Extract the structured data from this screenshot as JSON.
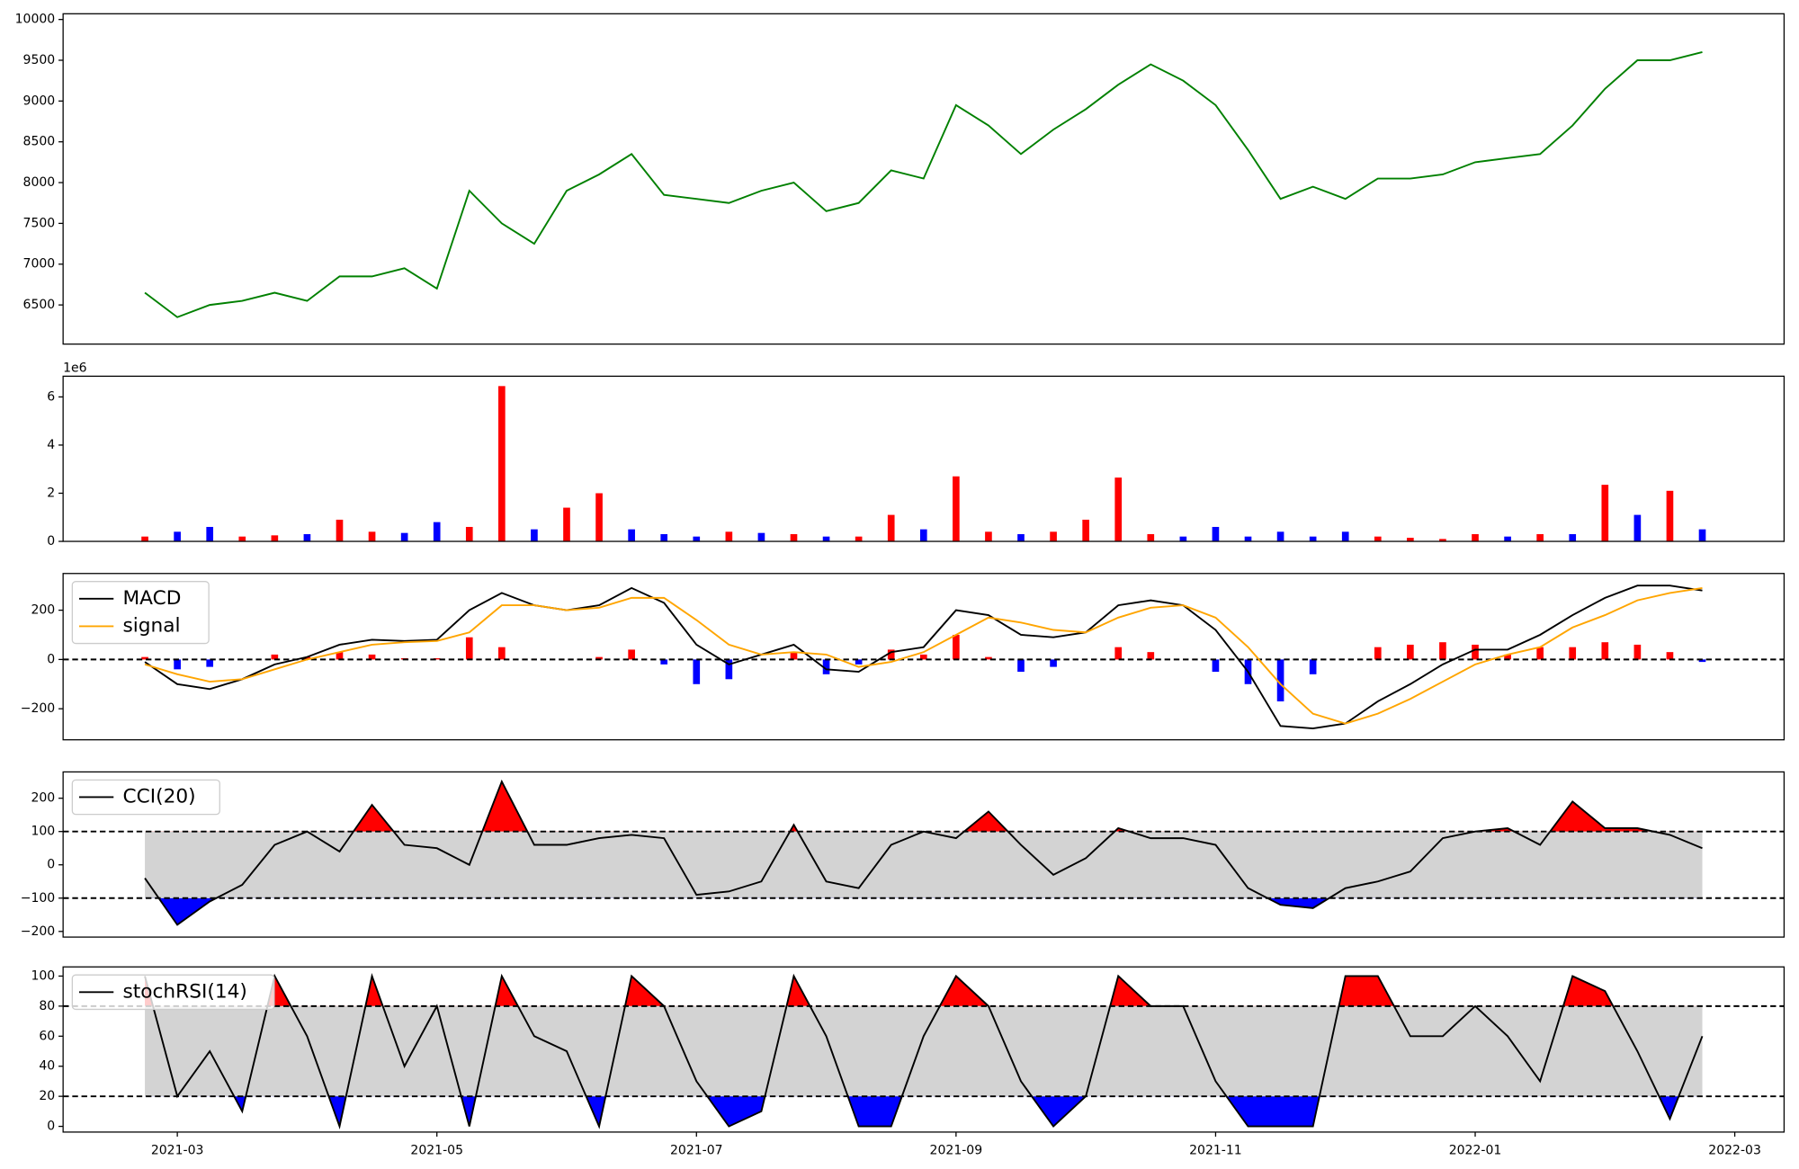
{
  "chart_data": [
    {
      "type": "line",
      "color": "green",
      "x": [
        2.75,
        3,
        3.25,
        3.5,
        3.75,
        4,
        4.25,
        4.5,
        4.75,
        5,
        5.25,
        5.5,
        5.75,
        6,
        6.25,
        6.5,
        6.75,
        7,
        7.25,
        7.5,
        7.75,
        8,
        8.25,
        8.5,
        8.75,
        9,
        9.25,
        9.5,
        9.75,
        10,
        10.25,
        10.5,
        10.75,
        11,
        11.25,
        11.5,
        11.75,
        12,
        12.25,
        12.5,
        12.75,
        13,
        13.25,
        13.5,
        13.75,
        14,
        14.25,
        14.5,
        14.75
      ],
      "values": [
        6650,
        6350,
        6500,
        6550,
        6650,
        6550,
        6850,
        6850,
        6950,
        6700,
        7900,
        7500,
        7250,
        7900,
        8100,
        8350,
        7850,
        7800,
        7750,
        7900,
        8000,
        7650,
        7750,
        8150,
        8050,
        8950,
        8700,
        8350,
        8650,
        8900,
        9200,
        9450,
        9250,
        8950,
        8400,
        7800,
        7950,
        7800,
        8050,
        8050,
        8100,
        8250,
        8300,
        8350,
        8700,
        9150,
        9500,
        9500,
        9600
      ],
      "xlim": [
        2.12,
        15.38
      ],
      "ylim": [
        6020,
        10070
      ],
      "yticks": [
        6500,
        7000,
        7500,
        8000,
        8500,
        9000,
        9500,
        10000
      ]
    },
    {
      "type": "bar",
      "offset_label": "1e6",
      "x": [
        2.75,
        3,
        3.25,
        3.5,
        3.75,
        4,
        4.25,
        4.5,
        4.75,
        5,
        5.25,
        5.5,
        5.75,
        6,
        6.25,
        6.5,
        6.75,
        7,
        7.25,
        7.5,
        7.75,
        8,
        8.25,
        8.5,
        8.75,
        9,
        9.25,
        9.5,
        9.75,
        10,
        10.25,
        10.5,
        10.75,
        11,
        11.25,
        11.5,
        11.75,
        12,
        12.25,
        12.5,
        12.75,
        13,
        13.25,
        13.5,
        13.75,
        14,
        14.25,
        14.5,
        14.75
      ],
      "values": [
        0.2,
        0.4,
        0.6,
        0.2,
        0.25,
        0.3,
        0.9,
        0.4,
        0.35,
        0.8,
        0.6,
        6.45,
        0.5,
        1.4,
        2.0,
        0.5,
        0.3,
        0.2,
        0.4,
        0.35,
        0.3,
        0.2,
        0.2,
        1.1,
        0.5,
        2.7,
        0.4,
        0.3,
        0.4,
        0.9,
        2.65,
        0.3,
        0.2,
        0.6,
        0.2,
        0.4,
        0.2,
        0.4,
        0.2,
        0.15,
        0.1,
        0.3,
        0.2,
        0.3,
        0.3,
        2.35,
        1.1,
        2.1,
        0.5
      ],
      "bar_colors": [
        "red",
        "blue",
        "blue",
        "red",
        "red",
        "blue",
        "red",
        "red",
        "blue",
        "blue",
        "red",
        "red",
        "blue",
        "red",
        "red",
        "blue",
        "blue",
        "blue",
        "red",
        "blue",
        "red",
        "blue",
        "red",
        "red",
        "blue",
        "red",
        "red",
        "blue",
        "red",
        "red",
        "red",
        "red",
        "blue",
        "blue",
        "blue",
        "blue",
        "blue",
        "blue",
        "red",
        "red",
        "red",
        "red",
        "blue",
        "red",
        "blue",
        "red",
        "blue",
        "red",
        "blue"
      ],
      "xlim": [
        2.12,
        15.38
      ],
      "ylim": [
        0,
        6.86
      ],
      "yticks": [
        0,
        2,
        4,
        6
      ]
    },
    {
      "type": "line",
      "legend": "upper left",
      "hlines": [
        0
      ],
      "x": [
        2.75,
        3,
        3.25,
        3.5,
        3.75,
        4,
        4.25,
        4.5,
        4.75,
        5,
        5.25,
        5.5,
        5.75,
        6,
        6.25,
        6.5,
        6.75,
        7,
        7.25,
        7.5,
        7.75,
        8,
        8.25,
        8.5,
        8.75,
        9,
        9.25,
        9.5,
        9.75,
        10,
        10.25,
        10.5,
        10.75,
        11,
        11.25,
        11.5,
        11.75,
        12,
        12.25,
        12.5,
        12.75,
        13,
        13.25,
        13.5,
        13.75,
        14,
        14.25,
        14.5,
        14.75
      ],
      "series": [
        {
          "name": "MACD",
          "color": "black",
          "values": [
            -10,
            -100,
            -120,
            -80,
            -20,
            10,
            60,
            80,
            75,
            80,
            200,
            270,
            220,
            200,
            220,
            290,
            230,
            60,
            -20,
            20,
            60,
            -40,
            -50,
            30,
            50,
            200,
            180,
            100,
            90,
            110,
            220,
            240,
            220,
            120,
            -50,
            -270,
            -280,
            -260,
            -170,
            -100,
            -20,
            40,
            40,
            100,
            180,
            250,
            300,
            300,
            280
          ]
        },
        {
          "name": "signal",
          "color": "orange",
          "values": [
            -20,
            -60,
            -90,
            -80,
            -40,
            0,
            30,
            60,
            70,
            75,
            110,
            220,
            220,
            200,
            210,
            250,
            250,
            160,
            60,
            20,
            30,
            20,
            -30,
            -10,
            30,
            100,
            170,
            150,
            120,
            110,
            170,
            210,
            220,
            170,
            50,
            -100,
            -220,
            -260,
            -220,
            -160,
            -90,
            -20,
            20,
            50,
            130,
            180,
            240,
            270,
            290
          ]
        }
      ],
      "histogram": {
        "positive_color": "red",
        "negative_color": "blue",
        "values": [
          10,
          -40,
          -30,
          0,
          20,
          10,
          30,
          20,
          5,
          5,
          90,
          50,
          0,
          0,
          10,
          40,
          -20,
          -100,
          -80,
          0,
          30,
          -60,
          -20,
          40,
          20,
          100,
          10,
          -50,
          -30,
          0,
          50,
          30,
          0,
          -50,
          -100,
          -170,
          -60,
          0,
          50,
          60,
          70,
          60,
          20,
          50,
          50,
          70,
          60,
          30,
          -10
        ]
      },
      "xlim": [
        2.12,
        15.38
      ],
      "ylim": [
        -326,
        349
      ],
      "yticks": [
        {
          "value": -200,
          "label": "−200"
        },
        0,
        200
      ]
    },
    {
      "type": "line",
      "legend": "upper left",
      "hlines": [
        100,
        -100
      ],
      "band_color": "lightgray",
      "above_color": "red",
      "below_color": "blue",
      "x": [
        2.75,
        3,
        3.25,
        3.5,
        3.75,
        4,
        4.25,
        4.5,
        4.75,
        5,
        5.25,
        5.5,
        5.75,
        6,
        6.25,
        6.5,
        6.75,
        7,
        7.25,
        7.5,
        7.75,
        8,
        8.25,
        8.5,
        8.75,
        9,
        9.25,
        9.5,
        9.75,
        10,
        10.25,
        10.5,
        10.75,
        11,
        11.25,
        11.5,
        11.75,
        12,
        12.25,
        12.5,
        12.75,
        13,
        13.25,
        13.5,
        13.75,
        14,
        14.25,
        14.5,
        14.75
      ],
      "series": [
        {
          "name": "CCI(20)",
          "color": "black",
          "values": [
            -40,
            -180,
            -110,
            -60,
            60,
            100,
            40,
            180,
            60,
            50,
            0,
            250,
            60,
            60,
            80,
            90,
            80,
            -90,
            -80,
            -50,
            120,
            -50,
            -70,
            60,
            100,
            80,
            160,
            60,
            -30,
            20,
            110,
            80,
            80,
            60,
            -70,
            -120,
            -130,
            -70,
            -50,
            -20,
            80,
            100,
            110,
            60,
            190,
            110,
            110,
            90,
            50
          ]
        }
      ],
      "xlim": [
        2.12,
        15.38
      ],
      "ylim": [
        -217,
        279
      ],
      "yticks": [
        {
          "value": -200,
          "label": "−200"
        },
        {
          "value": -100,
          "label": "−100"
        },
        0,
        100,
        200
      ]
    },
    {
      "type": "line",
      "legend": "upper left",
      "hlines": [
        80,
        20
      ],
      "band_color": "lightgray",
      "above_color": "red",
      "below_color": "blue",
      "x": [
        2.75,
        3,
        3.25,
        3.5,
        3.75,
        4,
        4.25,
        4.5,
        4.75,
        5,
        5.25,
        5.5,
        5.75,
        6,
        6.25,
        6.5,
        6.75,
        7,
        7.25,
        7.5,
        7.75,
        8,
        8.25,
        8.5,
        8.75,
        9,
        9.25,
        9.5,
        9.75,
        10,
        10.25,
        10.5,
        10.75,
        11,
        11.25,
        11.5,
        11.75,
        12,
        12.25,
        12.5,
        12.75,
        13,
        13.25,
        13.5,
        13.75,
        14,
        14.25,
        14.5,
        14.75
      ],
      "series": [
        {
          "name": "stochRSI(14)",
          "color": "black",
          "values": [
            100,
            20,
            50,
            10,
            100,
            60,
            0,
            100,
            40,
            80,
            0,
            100,
            60,
            50,
            0,
            100,
            80,
            30,
            0,
            10,
            100,
            60,
            0,
            0,
            60,
            100,
            80,
            30,
            0,
            20,
            100,
            80,
            80,
            30,
            0,
            0,
            0,
            100,
            100,
            60,
            60,
            80,
            60,
            30,
            100,
            90,
            50,
            5,
            60
          ]
        }
      ],
      "xlim": [
        2.12,
        15.38
      ],
      "ylim": [
        -3.8,
        106.1
      ],
      "yticks": [
        0,
        20,
        40,
        60,
        80,
        100
      ],
      "xticks": [
        {
          "value": 3,
          "label": "2021-03"
        },
        {
          "value": 5,
          "label": "2021-05"
        },
        {
          "value": 7,
          "label": "2021-07"
        },
        {
          "value": 9,
          "label": "2021-09"
        },
        {
          "value": 11,
          "label": "2021-11"
        },
        {
          "value": 13,
          "label": "2022-01"
        },
        {
          "value": 15,
          "label": "2022-03"
        }
      ]
    }
  ]
}
